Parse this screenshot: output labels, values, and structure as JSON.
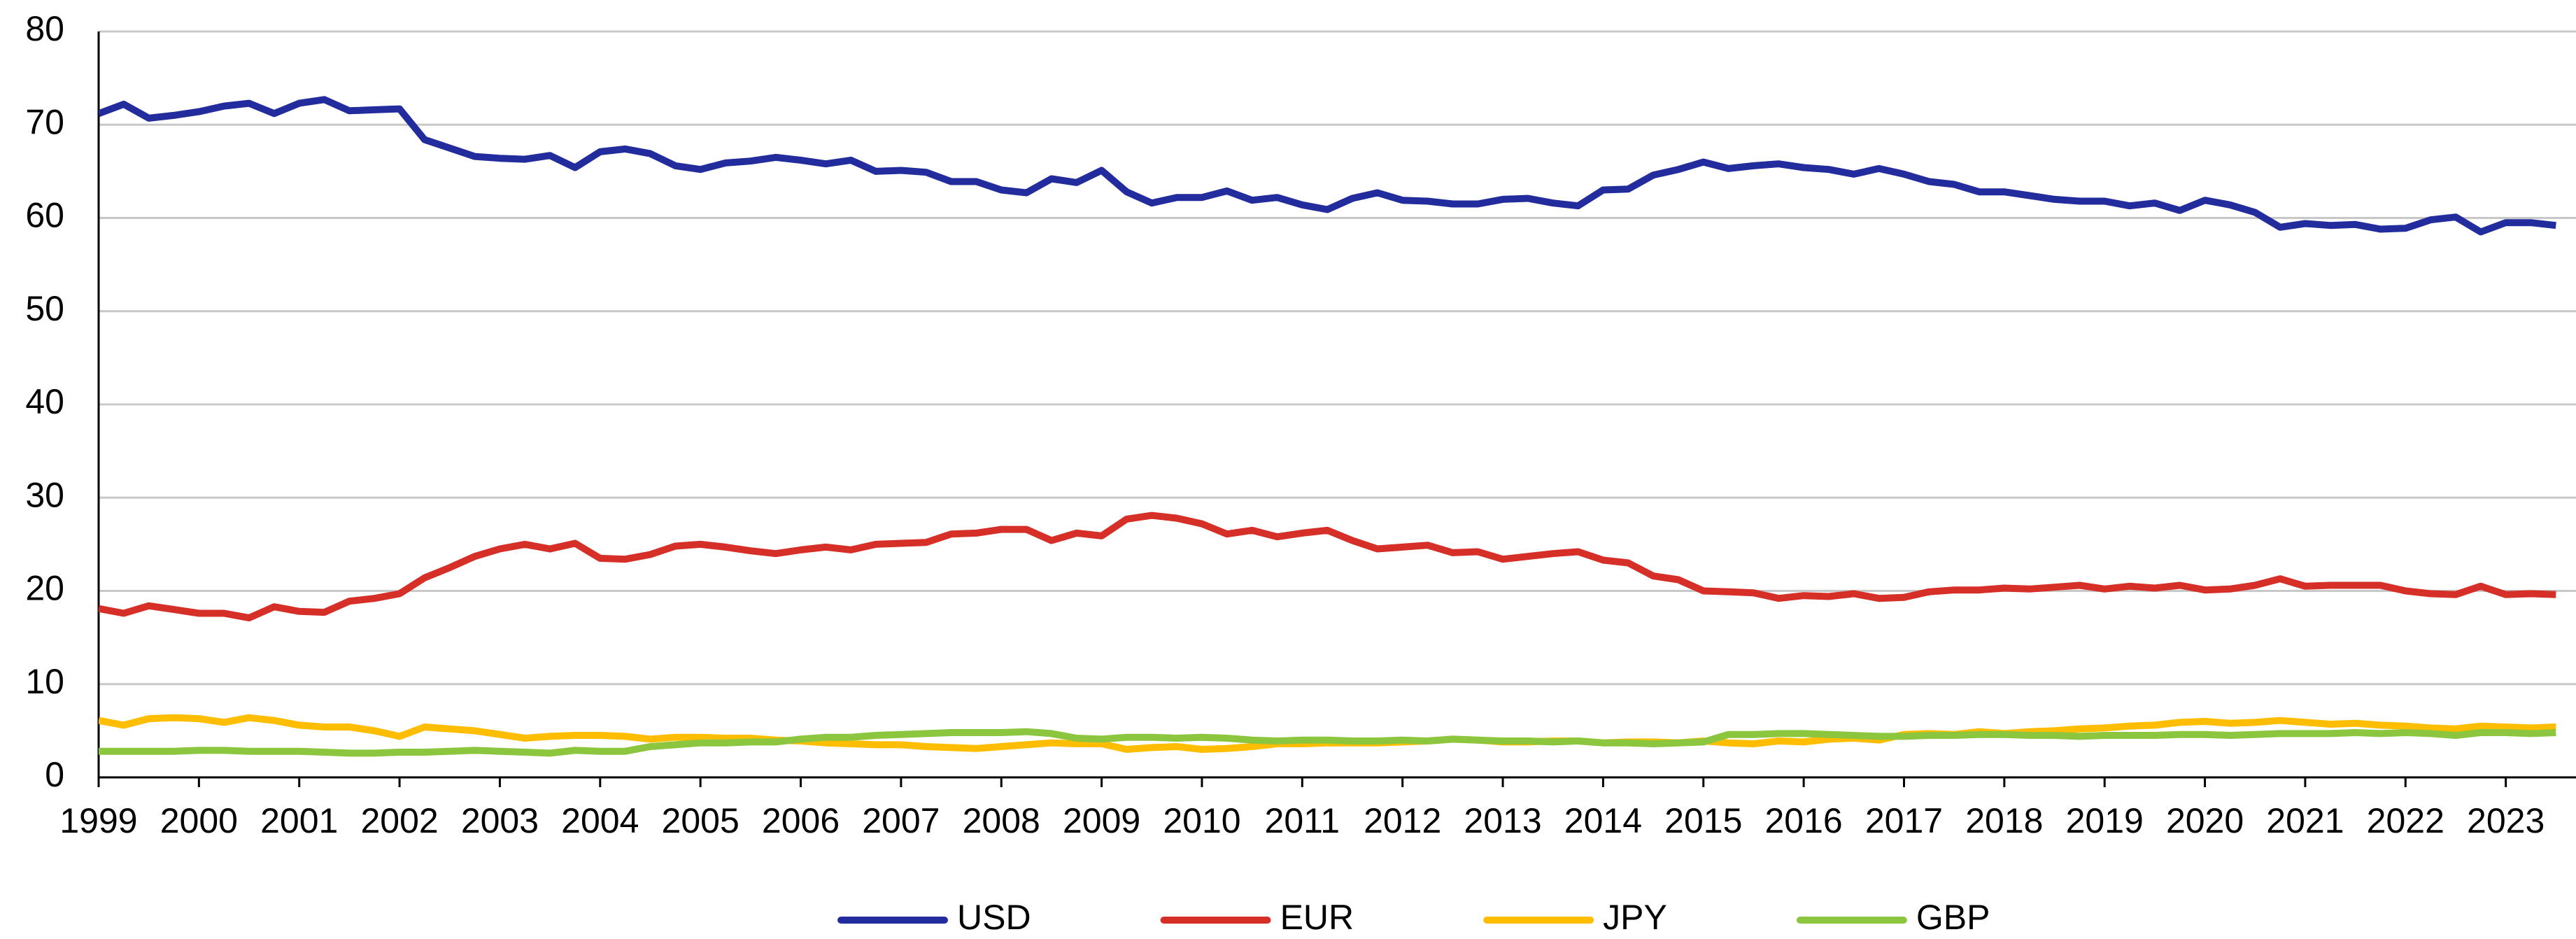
{
  "chart_data": {
    "type": "line",
    "x": [
      1999,
      1999.25,
      1999.5,
      1999.75,
      2000,
      2000.25,
      2000.5,
      2000.75,
      2001,
      2001.25,
      2001.5,
      2001.75,
      2002,
      2002.25,
      2002.5,
      2002.75,
      2003,
      2003.25,
      2003.5,
      2003.75,
      2004,
      2004.25,
      2004.5,
      2004.75,
      2005,
      2005.25,
      2005.5,
      2005.75,
      2006,
      2006.25,
      2006.5,
      2006.75,
      2007,
      2007.25,
      2007.5,
      2007.75,
      2008,
      2008.25,
      2008.5,
      2008.75,
      2009,
      2009.25,
      2009.5,
      2009.75,
      2010,
      2010.25,
      2010.5,
      2010.75,
      2011,
      2011.25,
      2011.5,
      2011.75,
      2012,
      2012.25,
      2012.5,
      2012.75,
      2013,
      2013.25,
      2013.5,
      2013.75,
      2014,
      2014.25,
      2014.5,
      2014.75,
      2015,
      2015.25,
      2015.5,
      2015.75,
      2016,
      2016.25,
      2016.5,
      2016.75,
      2017,
      2017.25,
      2017.5,
      2017.75,
      2018,
      2018.25,
      2018.5,
      2018.75,
      2019,
      2019.25,
      2019.5,
      2019.75,
      2020,
      2020.25,
      2020.5,
      2020.75,
      2021,
      2021.25,
      2021.5,
      2021.75,
      2022,
      2022.25,
      2022.5,
      2022.75,
      2023,
      2023.25,
      2023.5
    ],
    "series": [
      {
        "name": "USD",
        "color": "#232c9c",
        "values": [
          71.2,
          72.2,
          70.7,
          71.0,
          71.4,
          72.0,
          72.3,
          71.2,
          72.3,
          72.7,
          71.5,
          71.6,
          71.7,
          68.4,
          67.5,
          66.6,
          66.4,
          66.3,
          66.7,
          65.4,
          67.1,
          67.4,
          66.9,
          65.6,
          65.2,
          65.9,
          66.1,
          66.5,
          66.2,
          65.8,
          66.2,
          65.0,
          65.1,
          64.9,
          63.9,
          63.9,
          63.0,
          62.7,
          64.2,
          63.8,
          65.1,
          62.8,
          61.6,
          62.2,
          62.2,
          62.9,
          61.9,
          62.2,
          61.4,
          60.9,
          62.1,
          62.7,
          61.9,
          61.8,
          61.5,
          61.5,
          62.0,
          62.1,
          61.6,
          61.3,
          63.0,
          63.1,
          64.6,
          65.2,
          66.0,
          65.3,
          65.6,
          65.8,
          65.4,
          65.2,
          64.7,
          65.3,
          64.7,
          63.9,
          63.6,
          62.8,
          62.8,
          62.4,
          62.0,
          61.8,
          61.8,
          61.3,
          61.6,
          60.8,
          61.9,
          61.4,
          60.6,
          59.0,
          59.4,
          59.2,
          59.3,
          58.8,
          58.9,
          59.8,
          60.1,
          58.5,
          59.5,
          59.5,
          59.2
        ]
      },
      {
        "name": "EUR",
        "color": "#d52f28",
        "values": [
          18.1,
          17.6,
          18.4,
          18.0,
          17.6,
          17.6,
          17.1,
          18.3,
          17.8,
          17.7,
          18.9,
          19.2,
          19.7,
          21.4,
          22.5,
          23.7,
          24.5,
          25.0,
          24.5,
          25.1,
          23.5,
          23.4,
          23.9,
          24.8,
          25.0,
          24.7,
          24.3,
          24.0,
          24.4,
          24.7,
          24.4,
          25.0,
          25.1,
          25.2,
          26.1,
          26.2,
          26.6,
          26.6,
          25.4,
          26.2,
          25.9,
          27.7,
          28.1,
          27.8,
          27.2,
          26.1,
          26.5,
          25.8,
          26.2,
          26.5,
          25.4,
          24.5,
          24.7,
          24.9,
          24.1,
          24.2,
          23.4,
          23.7,
          24.0,
          24.2,
          23.3,
          23.0,
          21.6,
          21.2,
          20.0,
          19.9,
          19.8,
          19.2,
          19.5,
          19.4,
          19.7,
          19.2,
          19.3,
          19.9,
          20.1,
          20.1,
          20.3,
          20.2,
          20.4,
          20.6,
          20.2,
          20.5,
          20.3,
          20.6,
          20.1,
          20.2,
          20.6,
          21.3,
          20.5,
          20.6,
          20.6,
          20.6,
          20.0,
          19.7,
          19.6,
          20.5,
          19.6,
          19.7,
          19.6
        ]
      },
      {
        "name": "JPY",
        "color": "#ffbd00",
        "values": [
          6.1,
          5.6,
          6.3,
          6.4,
          6.3,
          5.9,
          6.4,
          6.1,
          5.6,
          5.4,
          5.4,
          5.0,
          4.4,
          5.4,
          5.2,
          5.0,
          4.6,
          4.2,
          4.4,
          4.5,
          4.5,
          4.4,
          4.1,
          4.3,
          4.3,
          4.2,
          4.2,
          4.0,
          3.9,
          3.7,
          3.6,
          3.5,
          3.5,
          3.3,
          3.2,
          3.1,
          3.3,
          3.5,
          3.7,
          3.6,
          3.6,
          3.0,
          3.2,
          3.3,
          3.0,
          3.1,
          3.3,
          3.6,
          3.6,
          3.7,
          3.7,
          3.7,
          3.8,
          3.9,
          4.1,
          4.0,
          3.8,
          3.8,
          3.9,
          3.9,
          3.7,
          3.8,
          3.8,
          3.7,
          3.9,
          3.7,
          3.6,
          3.9,
          3.8,
          4.1,
          4.2,
          4.0,
          4.6,
          4.7,
          4.6,
          4.9,
          4.7,
          4.9,
          5.0,
          5.2,
          5.3,
          5.5,
          5.6,
          5.9,
          6.0,
          5.8,
          5.9,
          6.1,
          5.9,
          5.7,
          5.8,
          5.6,
          5.5,
          5.3,
          5.2,
          5.5,
          5.4,
          5.3,
          5.4
        ]
      },
      {
        "name": "GBP",
        "color": "#8cc63e",
        "values": [
          2.8,
          2.8,
          2.8,
          2.8,
          2.9,
          2.9,
          2.8,
          2.8,
          2.8,
          2.7,
          2.6,
          2.6,
          2.7,
          2.7,
          2.8,
          2.9,
          2.8,
          2.7,
          2.6,
          2.9,
          2.8,
          2.8,
          3.3,
          3.5,
          3.7,
          3.7,
          3.8,
          3.8,
          4.1,
          4.3,
          4.3,
          4.5,
          4.6,
          4.7,
          4.8,
          4.8,
          4.8,
          4.9,
          4.7,
          4.2,
          4.1,
          4.3,
          4.3,
          4.2,
          4.3,
          4.2,
          4.0,
          3.9,
          4.0,
          4.0,
          3.9,
          3.9,
          4.0,
          3.9,
          4.1,
          4.0,
          3.9,
          3.9,
          3.8,
          3.9,
          3.7,
          3.7,
          3.6,
          3.7,
          3.8,
          4.6,
          4.6,
          4.7,
          4.7,
          4.6,
          4.5,
          4.4,
          4.4,
          4.5,
          4.5,
          4.6,
          4.6,
          4.5,
          4.5,
          4.4,
          4.5,
          4.5,
          4.5,
          4.6,
          4.6,
          4.5,
          4.6,
          4.7,
          4.7,
          4.7,
          4.8,
          4.7,
          4.8,
          4.7,
          4.5,
          4.8,
          4.8,
          4.7,
          4.8
        ]
      }
    ],
    "xlim": [
      1999,
      2023.7
    ],
    "xticks": [
      1999,
      2000,
      2001,
      2002,
      2003,
      2004,
      2005,
      2006,
      2007,
      2008,
      2009,
      2010,
      2011,
      2012,
      2013,
      2014,
      2015,
      2016,
      2017,
      2018,
      2019,
      2020,
      2021,
      2022,
      2023
    ],
    "ylim": [
      0,
      80
    ],
    "yticks": [
      0,
      10,
      20,
      30,
      40,
      50,
      60,
      70,
      80
    ],
    "grid": true,
    "legend": "bottom"
  }
}
